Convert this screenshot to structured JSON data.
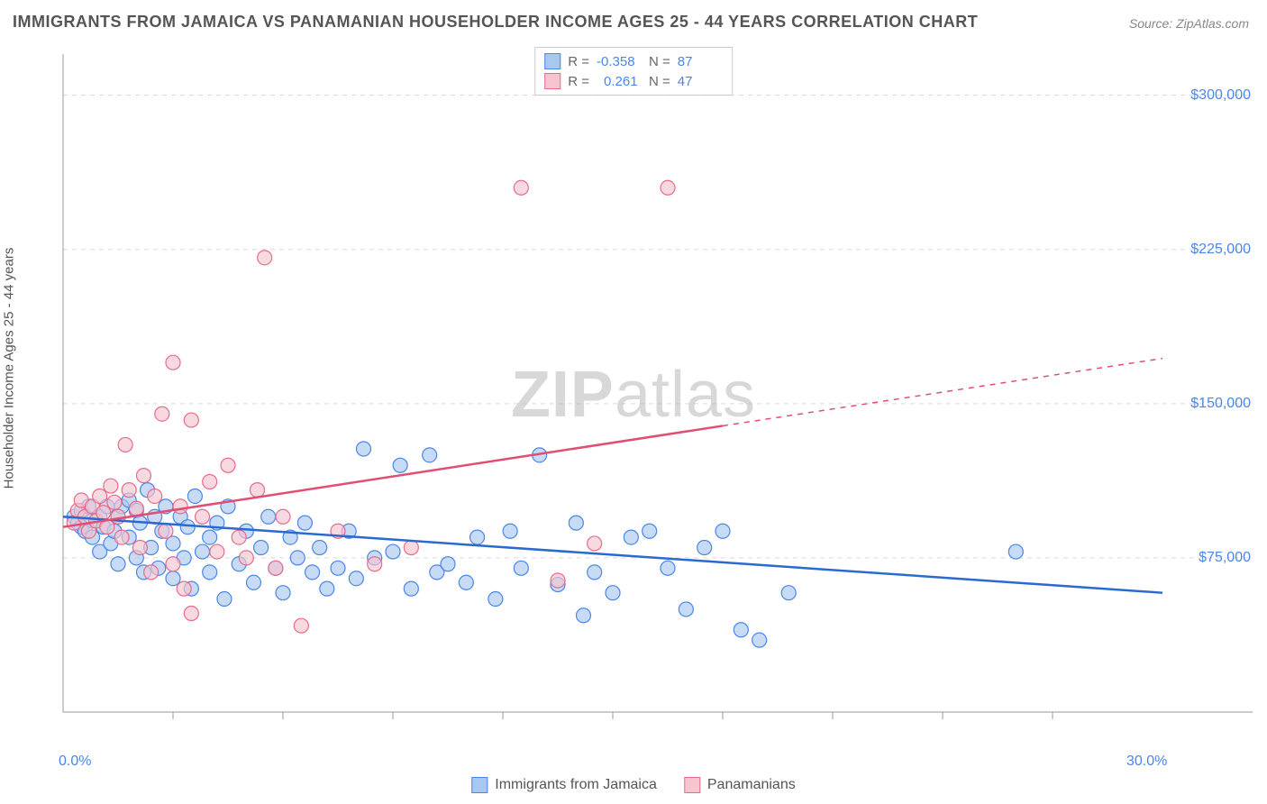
{
  "title": "IMMIGRANTS FROM JAMAICA VS PANAMANIAN HOUSEHOLDER INCOME AGES 25 - 44 YEARS CORRELATION CHART",
  "source": "Source: ZipAtlas.com",
  "watermark_bold": "ZIP",
  "watermark_rest": "atlas",
  "y_axis_label": "Householder Income Ages 25 - 44 years",
  "chart": {
    "type": "scatter",
    "background_color": "#ffffff",
    "grid_color": "#d9d9d9",
    "axis_color": "#999999",
    "xlim": [
      0,
      30
    ],
    "ylim": [
      0,
      320000
    ],
    "x_ticks": [
      0,
      30
    ],
    "x_tick_labels": [
      "0.0%",
      "30.0%"
    ],
    "x_minor_ticks": [
      3,
      6,
      9,
      12,
      15,
      18,
      21,
      24,
      27
    ],
    "y_ticks": [
      75000,
      150000,
      225000,
      300000
    ],
    "y_tick_labels": [
      "$75,000",
      "$150,000",
      "$225,000",
      "$300,000"
    ],
    "series": [
      {
        "name": "Immigrants from Jamaica",
        "fill": "#a9c8f0",
        "stroke": "#4a86e8",
        "line_color": "#2a6ad0",
        "marker_radius": 8,
        "opacity": 0.65,
        "R": "-0.358",
        "N": "87",
        "trend": {
          "x1": 0,
          "y1": 95000,
          "x2": 30,
          "y2": 58000,
          "solid_until_x": 30
        },
        "points": [
          [
            0.3,
            95000
          ],
          [
            0.4,
            92000
          ],
          [
            0.5,
            98000
          ],
          [
            0.5,
            90000
          ],
          [
            0.6,
            88000
          ],
          [
            0.7,
            100000
          ],
          [
            0.8,
            93000
          ],
          [
            0.8,
            85000
          ],
          [
            1.0,
            95000
          ],
          [
            1.0,
            78000
          ],
          [
            1.1,
            90000
          ],
          [
            1.2,
            100000
          ],
          [
            1.3,
            82000
          ],
          [
            1.4,
            88000
          ],
          [
            1.5,
            95000
          ],
          [
            1.5,
            72000
          ],
          [
            1.6,
            100000
          ],
          [
            1.8,
            85000
          ],
          [
            1.8,
            103000
          ],
          [
            2.0,
            98000
          ],
          [
            2.0,
            75000
          ],
          [
            2.1,
            92000
          ],
          [
            2.2,
            68000
          ],
          [
            2.3,
            108000
          ],
          [
            2.4,
            80000
          ],
          [
            2.5,
            95000
          ],
          [
            2.6,
            70000
          ],
          [
            2.7,
            88000
          ],
          [
            2.8,
            100000
          ],
          [
            3.0,
            65000
          ],
          [
            3.0,
            82000
          ],
          [
            3.2,
            95000
          ],
          [
            3.3,
            75000
          ],
          [
            3.4,
            90000
          ],
          [
            3.5,
            60000
          ],
          [
            3.6,
            105000
          ],
          [
            3.8,
            78000
          ],
          [
            4.0,
            85000
          ],
          [
            4.0,
            68000
          ],
          [
            4.2,
            92000
          ],
          [
            4.4,
            55000
          ],
          [
            4.5,
            100000
          ],
          [
            4.8,
            72000
          ],
          [
            5.0,
            88000
          ],
          [
            5.2,
            63000
          ],
          [
            5.4,
            80000
          ],
          [
            5.6,
            95000
          ],
          [
            5.8,
            70000
          ],
          [
            6.0,
            58000
          ],
          [
            6.2,
            85000
          ],
          [
            6.4,
            75000
          ],
          [
            6.6,
            92000
          ],
          [
            6.8,
            68000
          ],
          [
            7.0,
            80000
          ],
          [
            7.2,
            60000
          ],
          [
            7.5,
            70000
          ],
          [
            7.8,
            88000
          ],
          [
            8.0,
            65000
          ],
          [
            8.2,
            128000
          ],
          [
            8.5,
            75000
          ],
          [
            9.0,
            78000
          ],
          [
            9.2,
            120000
          ],
          [
            9.5,
            60000
          ],
          [
            10.0,
            125000
          ],
          [
            10.2,
            68000
          ],
          [
            10.5,
            72000
          ],
          [
            11.0,
            63000
          ],
          [
            11.3,
            85000
          ],
          [
            11.8,
            55000
          ],
          [
            12.2,
            88000
          ],
          [
            12.5,
            70000
          ],
          [
            13.0,
            125000
          ],
          [
            13.5,
            62000
          ],
          [
            14.0,
            92000
          ],
          [
            14.2,
            47000
          ],
          [
            14.5,
            68000
          ],
          [
            15.0,
            58000
          ],
          [
            15.5,
            85000
          ],
          [
            16.0,
            88000
          ],
          [
            16.5,
            70000
          ],
          [
            17.0,
            50000
          ],
          [
            17.5,
            80000
          ],
          [
            18.0,
            88000
          ],
          [
            18.5,
            40000
          ],
          [
            19.0,
            35000
          ],
          [
            19.8,
            58000
          ],
          [
            26.0,
            78000
          ]
        ]
      },
      {
        "name": "Panamanians",
        "fill": "#f6c5d0",
        "stroke": "#e86b8a",
        "line_color": "#e04f73",
        "marker_radius": 8,
        "opacity": 0.65,
        "R": "0.261",
        "N": "47",
        "trend": {
          "x1": 0,
          "y1": 90000,
          "x2": 30,
          "y2": 172000,
          "solid_until_x": 18
        },
        "points": [
          [
            0.3,
            92000
          ],
          [
            0.4,
            98000
          ],
          [
            0.5,
            103000
          ],
          [
            0.6,
            95000
          ],
          [
            0.7,
            88000
          ],
          [
            0.8,
            100000
          ],
          [
            0.9,
            93000
          ],
          [
            1.0,
            105000
          ],
          [
            1.1,
            97000
          ],
          [
            1.2,
            90000
          ],
          [
            1.3,
            110000
          ],
          [
            1.4,
            102000
          ],
          [
            1.5,
            95000
          ],
          [
            1.6,
            85000
          ],
          [
            1.7,
            130000
          ],
          [
            1.8,
            108000
          ],
          [
            2.0,
            99000
          ],
          [
            2.1,
            80000
          ],
          [
            2.2,
            115000
          ],
          [
            2.4,
            68000
          ],
          [
            2.5,
            105000
          ],
          [
            2.7,
            145000
          ],
          [
            2.8,
            88000
          ],
          [
            3.0,
            72000
          ],
          [
            3.0,
            170000
          ],
          [
            3.2,
            100000
          ],
          [
            3.3,
            60000
          ],
          [
            3.5,
            48000
          ],
          [
            3.5,
            142000
          ],
          [
            3.8,
            95000
          ],
          [
            4.0,
            112000
          ],
          [
            4.2,
            78000
          ],
          [
            4.5,
            120000
          ],
          [
            4.8,
            85000
          ],
          [
            5.0,
            75000
          ],
          [
            5.3,
            108000
          ],
          [
            5.5,
            221000
          ],
          [
            5.8,
            70000
          ],
          [
            6.0,
            95000
          ],
          [
            6.5,
            42000
          ],
          [
            7.5,
            88000
          ],
          [
            8.5,
            72000
          ],
          [
            9.5,
            80000
          ],
          [
            12.5,
            255000
          ],
          [
            13.5,
            64000
          ],
          [
            14.5,
            82000
          ],
          [
            16.5,
            255000
          ]
        ]
      }
    ],
    "legend_labels": [
      "Immigrants from Jamaica",
      "Panamanians"
    ]
  }
}
